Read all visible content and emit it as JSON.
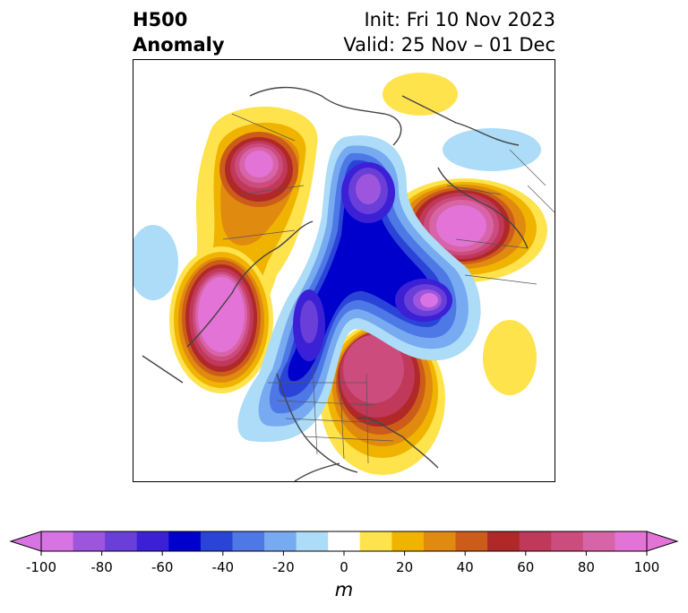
{
  "title": {
    "left_line1": "H500",
    "left_line2": "Anomaly",
    "right_line1": "Init: Fri 10 Nov 2023",
    "right_line2": "Valid: 25 Nov – 01 Dec"
  },
  "colorbar": {
    "unit": "m",
    "ticks": [
      "-100",
      "-80",
      "-60",
      "-40",
      "-20",
      "0",
      "20",
      "40",
      "60",
      "80",
      "100"
    ],
    "colors": [
      "#d873e3",
      "#9d55de",
      "#6a3ed8",
      "#3b20d6",
      "#0000cc",
      "#2a44d8",
      "#4d78e6",
      "#77aaf0",
      "#acdcf7",
      "#ffffff",
      "#ffe34d",
      "#f0b400",
      "#e08a10",
      "#cc5c1a",
      "#b02828",
      "#c0385a",
      "#cc4c7e",
      "#d864a8",
      "#e373d6"
    ]
  },
  "map": {
    "positive_color_scale": [
      "#ffe34d",
      "#f0b400",
      "#e08a10",
      "#cc5c1a",
      "#b02828",
      "#c0385a",
      "#cc4c7e",
      "#d864a8",
      "#e373d6"
    ],
    "negative_color_scale": [
      "#acdcf7",
      "#77aaf0",
      "#4d78e6",
      "#2a44d8",
      "#0000cc",
      "#3b20d6",
      "#6a3ed8",
      "#9d55de",
      "#d873e3"
    ],
    "coastline_color": "#444444"
  }
}
